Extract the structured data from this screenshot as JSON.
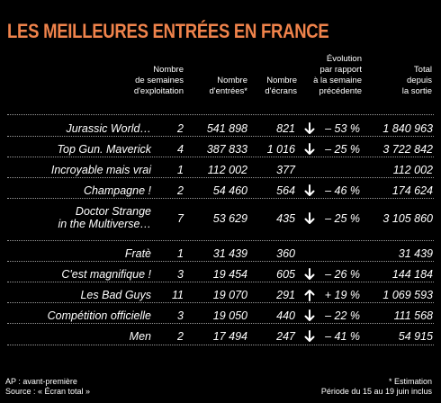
{
  "title": "LES MEILLEURES ENTRÉES EN FRANCE",
  "title_color": "#f0834b",
  "headers": {
    "weeks": [
      "Nombre",
      "de semaines",
      "d'exploitation"
    ],
    "entries": [
      "Nombre",
      "d'entrées*"
    ],
    "screens": [
      "Nombre",
      "d'écrans"
    ],
    "evolution": [
      "Évolution",
      "par rapport",
      "à la semaine",
      "précédente"
    ],
    "total": [
      "Total",
      "depuis",
      "la sortie"
    ]
  },
  "rows": [
    {
      "film": "Jurassic World…",
      "weeks": "2",
      "entries": "541 898",
      "screens": "821",
      "trend": "down",
      "pct": "– 53 %",
      "total": "1 840 963"
    },
    {
      "film": "Top Gun. Maverick",
      "weeks": "4",
      "entries": "387 833",
      "screens": "1 016",
      "trend": "down",
      "pct": "– 25 %",
      "total": "3 722 842"
    },
    {
      "film": "Incroyable mais vrai",
      "weeks": "1",
      "entries": "112 002",
      "screens": "377",
      "trend": "none",
      "pct": "",
      "total": "112 002"
    },
    {
      "film": "Champagne !",
      "weeks": "2",
      "entries": "54 460",
      "screens": "564",
      "trend": "down",
      "pct": "– 46 %",
      "total": "174 624"
    },
    {
      "film": "Doctor Strange",
      "film_line2": "in the Multiverse…",
      "weeks": "7",
      "entries": "53 629",
      "screens": "435",
      "trend": "down",
      "pct": "– 25 %",
      "total": "3 105 860"
    },
    {
      "film": "Fratè",
      "weeks": "1",
      "entries": "31 439",
      "screens": "360",
      "trend": "none",
      "pct": "",
      "total": "31 439"
    },
    {
      "film": "C'est magnifique !",
      "weeks": "3",
      "entries": "19 454",
      "screens": "605",
      "trend": "down",
      "pct": "– 26 %",
      "total": "144 184"
    },
    {
      "film": "Les Bad Guys",
      "weeks": "11",
      "entries": "19 070",
      "screens": "291",
      "trend": "up",
      "pct": "+ 19 %",
      "total": "1 069 593"
    },
    {
      "film": "Compétition officielle",
      "weeks": "3",
      "entries": "19 050",
      "screens": "440",
      "trend": "down",
      "pct": "– 22 %",
      "total": "111 568"
    },
    {
      "film": "Men",
      "weeks": "2",
      "entries": "17 494",
      "screens": "247",
      "trend": "down",
      "pct": "– 41 %",
      "total": "54 915"
    }
  ],
  "footer": {
    "left_line1": "AP : avant-première",
    "left_line2": "Source : « Écran total »",
    "right_line1": "* Estimation",
    "right_line2": "Période du 15 au 19 juin inclus"
  }
}
